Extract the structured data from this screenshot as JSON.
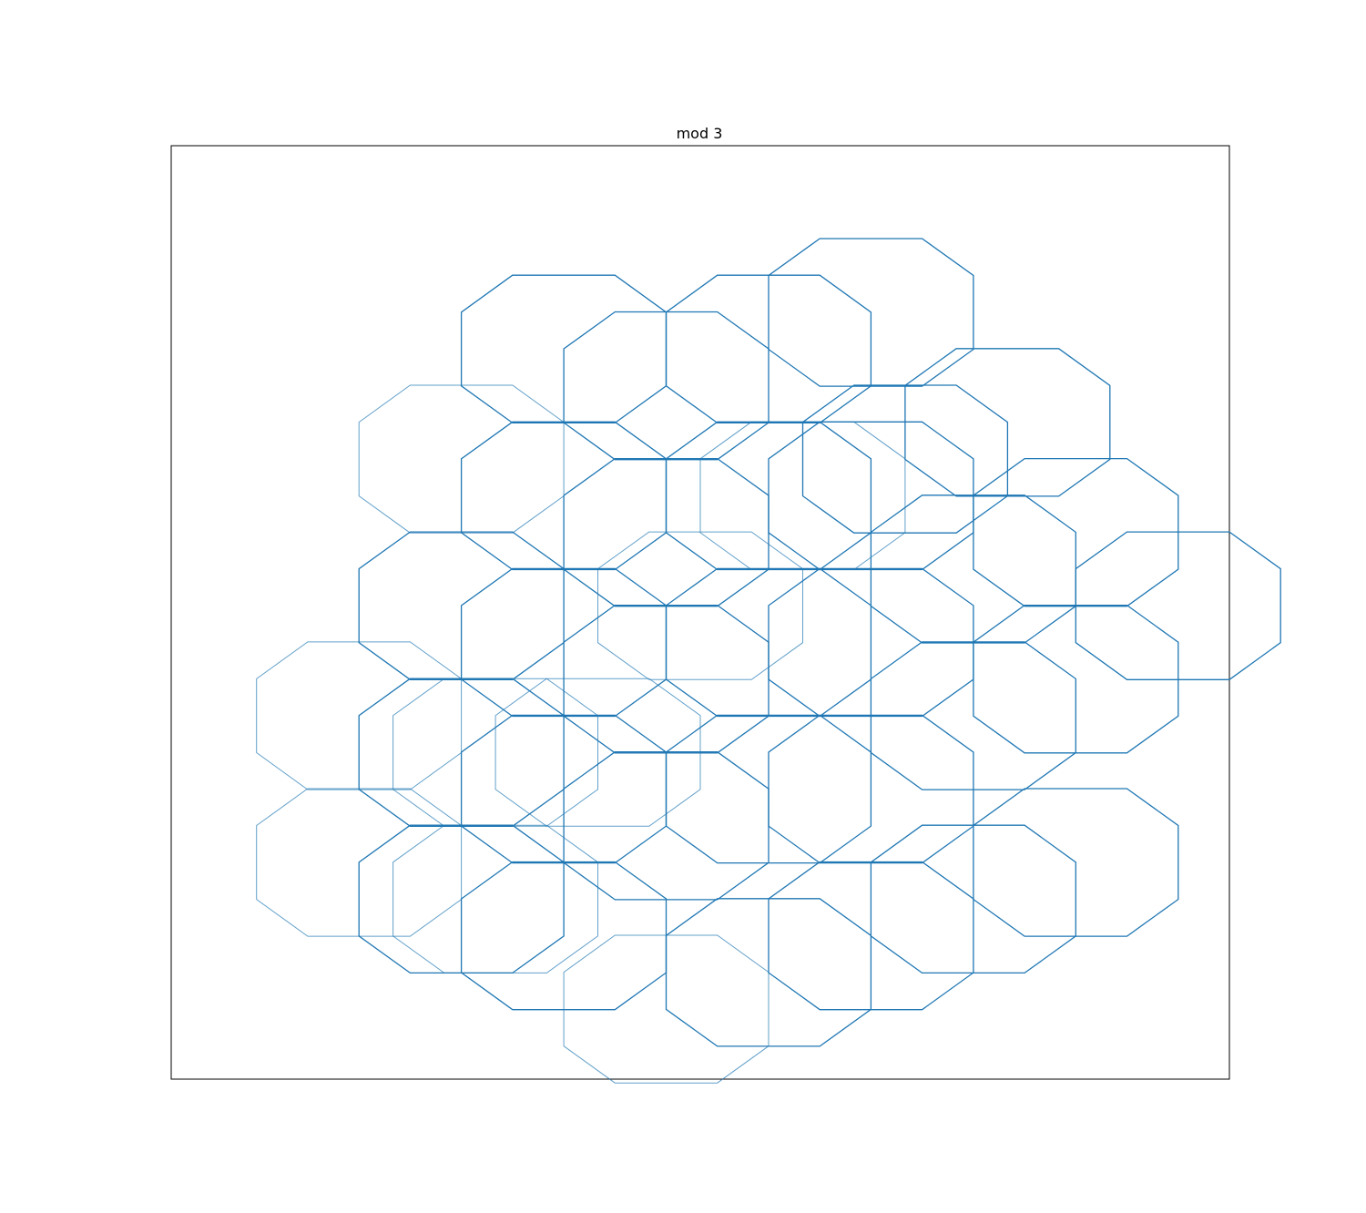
{
  "chart_data": {
    "type": "line",
    "title": "mod 3",
    "xlabel": "",
    "ylabel": "",
    "axes_ticks": "hidden",
    "grid": false,
    "legend": "none",
    "series_color": "#1f77b4",
    "shape": "regular octagon outlines",
    "xlim": [
      -1,
      30
    ],
    "ylim": [
      -1,
      27
    ],
    "x_step": 3.0,
    "y_step": 2.215,
    "octagons": [
      {
        "cx": 4.5,
        "cy": 5.5,
        "alpha": 0.7
      },
      {
        "cx": 4.5,
        "cy": 9.9,
        "alpha": 0.7
      },
      {
        "cx": 7.5,
        "cy": 4.4,
        "alpha": 1.0
      },
      {
        "cx": 7.5,
        "cy": 8.8,
        "alpha": 1.0
      },
      {
        "cx": 7.5,
        "cy": 13.2,
        "alpha": 1.0
      },
      {
        "cx": 7.5,
        "cy": 17.6,
        "alpha": 0.7
      },
      {
        "cx": 8.5,
        "cy": 4.4,
        "alpha": 0.7
      },
      {
        "cx": 8.5,
        "cy": 8.8,
        "alpha": 0.7
      },
      {
        "cx": 10.5,
        "cy": 3.3,
        "alpha": 1.0
      },
      {
        "cx": 10.5,
        "cy": 7.7,
        "alpha": 1.0
      },
      {
        "cx": 10.5,
        "cy": 12.1,
        "alpha": 1.0
      },
      {
        "cx": 10.5,
        "cy": 16.5,
        "alpha": 1.0
      },
      {
        "cx": 10.5,
        "cy": 20.9,
        "alpha": 1.0
      },
      {
        "cx": 11.5,
        "cy": 8.8,
        "alpha": 0.7
      },
      {
        "cx": 13.5,
        "cy": 1.1,
        "alpha": 0.7
      },
      {
        "cx": 13.5,
        "cy": 6.6,
        "alpha": 1.0
      },
      {
        "cx": 13.5,
        "cy": 11.0,
        "alpha": 1.0
      },
      {
        "cx": 13.5,
        "cy": 15.4,
        "alpha": 1.0
      },
      {
        "cx": 13.5,
        "cy": 19.8,
        "alpha": 1.0
      },
      {
        "cx": 14.5,
        "cy": 13.2,
        "alpha": 0.7
      },
      {
        "cx": 16.5,
        "cy": 2.2,
        "alpha": 1.0
      },
      {
        "cx": 16.5,
        "cy": 7.7,
        "alpha": 1.0
      },
      {
        "cx": 16.5,
        "cy": 12.1,
        "alpha": 1.0
      },
      {
        "cx": 16.5,
        "cy": 16.5,
        "alpha": 1.0
      },
      {
        "cx": 16.5,
        "cy": 20.9,
        "alpha": 1.0
      },
      {
        "cx": 17.5,
        "cy": 16.5,
        "alpha": 0.7
      },
      {
        "cx": 19.5,
        "cy": 3.3,
        "alpha": 1.0
      },
      {
        "cx": 19.5,
        "cy": 7.7,
        "alpha": 1.0
      },
      {
        "cx": 19.5,
        "cy": 12.1,
        "alpha": 1.0
      },
      {
        "cx": 19.5,
        "cy": 16.5,
        "alpha": 1.0
      },
      {
        "cx": 19.5,
        "cy": 22.0,
        "alpha": 1.0
      },
      {
        "cx": 20.5,
        "cy": 17.6,
        "alpha": 1.0
      },
      {
        "cx": 22.5,
        "cy": 4.4,
        "alpha": 1.0
      },
      {
        "cx": 22.5,
        "cy": 9.9,
        "alpha": 1.0
      },
      {
        "cx": 22.5,
        "cy": 14.3,
        "alpha": 1.0
      },
      {
        "cx": 23.5,
        "cy": 18.7,
        "alpha": 1.0
      },
      {
        "cx": 25.5,
        "cy": 5.5,
        "alpha": 1.0
      },
      {
        "cx": 25.5,
        "cy": 11.0,
        "alpha": 1.0
      },
      {
        "cx": 25.5,
        "cy": 15.4,
        "alpha": 1.0
      },
      {
        "cx": 28.5,
        "cy": 13.2,
        "alpha": 1.0
      }
    ]
  }
}
